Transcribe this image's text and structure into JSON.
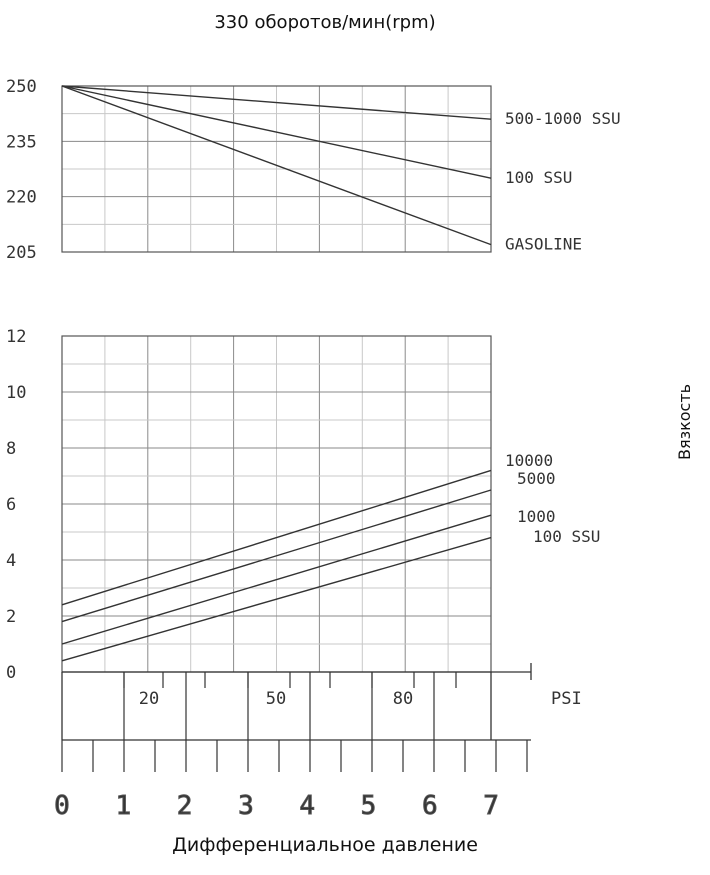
{
  "chart_data": [
    {
      "type": "line",
      "title": "330 оборотов/мин(rpm)",
      "x": [
        0,
        7
      ],
      "xlim": [
        0,
        7
      ],
      "ylim": [
        205,
        250
      ],
      "yticks": [
        "250",
        "235",
        "220",
        "205"
      ],
      "grid": true,
      "series": [
        {
          "name": "500-1000 SSU",
          "values": [
            250,
            241
          ]
        },
        {
          "name": "100 SSU",
          "values": [
            250,
            225
          ]
        },
        {
          "name": "GASOLINE",
          "values": [
            250,
            207
          ]
        }
      ]
    },
    {
      "type": "line",
      "x": [
        0,
        7
      ],
      "xlim": [
        0,
        7
      ],
      "ylim": [
        0,
        12
      ],
      "yticks": [
        "12",
        "10",
        "8",
        "6",
        "4",
        "2",
        "0"
      ],
      "ylabel": "Вязкость",
      "xlabel": "Дифференциальное давление",
      "grid": true,
      "series": [
        {
          "name": "10000",
          "values": [
            2.4,
            7.2
          ]
        },
        {
          "name": "5000",
          "values": [
            1.8,
            6.5
          ]
        },
        {
          "name": "1000",
          "values": [
            1.0,
            5.6
          ]
        },
        {
          "name": "100 SSU",
          "values": [
            0.4,
            4.8
          ]
        }
      ],
      "psi_scale": {
        "unit": "PSI",
        "tick_labels": [
          "20",
          "50",
          "80"
        ]
      },
      "bar_scale": {
        "tick_labels": [
          "0",
          "1",
          "2",
          "3",
          "4",
          "5",
          "6",
          "7"
        ]
      }
    }
  ]
}
